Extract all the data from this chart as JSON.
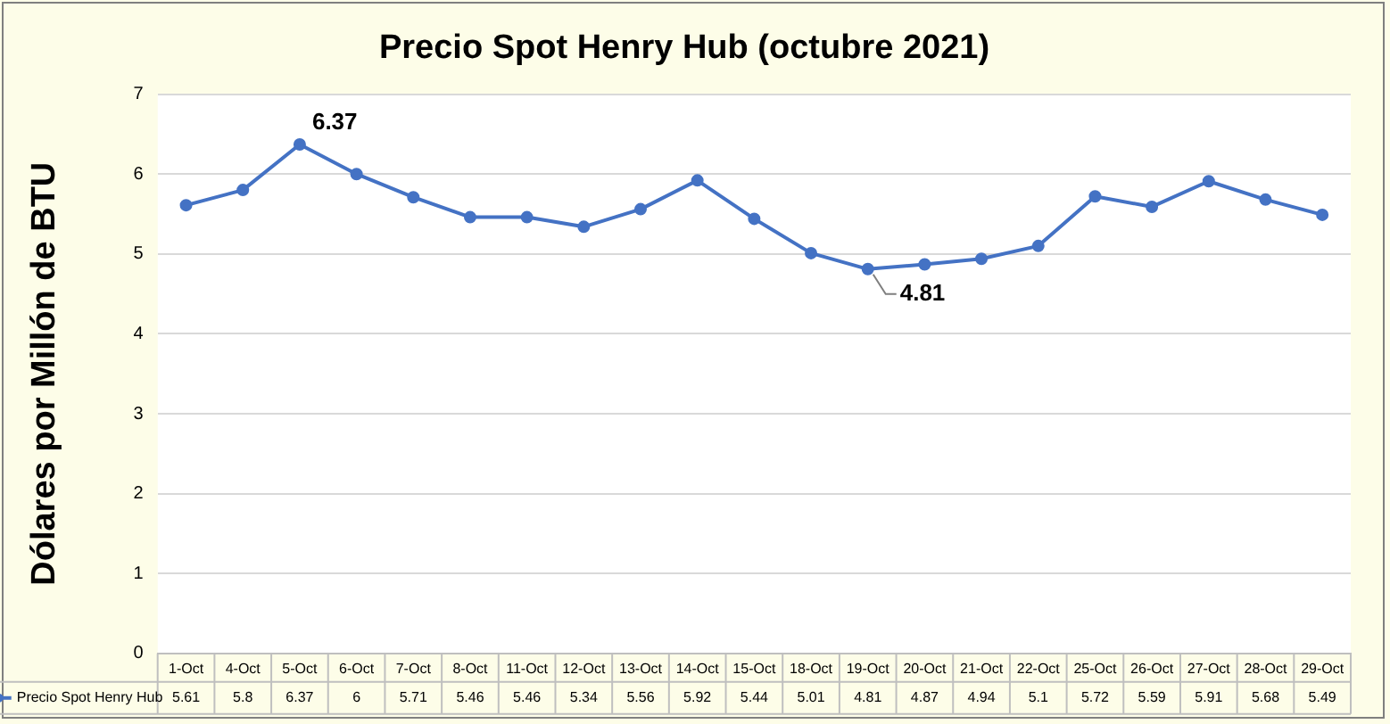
{
  "chart_data": {
    "type": "line",
    "title": "Precio Spot Henry Hub (octubre 2021)",
    "ylabel": "Dólares por Millón de BTU",
    "categories": [
      "1-Oct",
      "4-Oct",
      "5-Oct",
      "6-Oct",
      "7-Oct",
      "8-Oct",
      "11-Oct",
      "12-Oct",
      "13-Oct",
      "14-Oct",
      "15-Oct",
      "18-Oct",
      "19-Oct",
      "20-Oct",
      "21-Oct",
      "22-Oct",
      "25-Oct",
      "26-Oct",
      "27-Oct",
      "28-Oct",
      "29-Oct"
    ],
    "series": [
      {
        "name": "Precio Spot Henry Hub",
        "color": "#4472c4",
        "values": [
          5.61,
          5.8,
          6.37,
          6,
          5.71,
          5.46,
          5.46,
          5.34,
          5.56,
          5.92,
          5.44,
          5.01,
          4.81,
          4.87,
          4.94,
          5.1,
          5.72,
          5.59,
          5.91,
          5.68,
          5.49
        ]
      }
    ],
    "ylim": [
      0,
      7
    ],
    "yticks": [
      0,
      1,
      2,
      3,
      4,
      5,
      6,
      7
    ],
    "grid": "y",
    "marker": "circle",
    "line_style": "solid",
    "legend": "bottom",
    "data_labels": true,
    "annotations": [
      {
        "text": "6.37",
        "x": "5-Oct",
        "y": 6.37
      },
      {
        "text": "4.81",
        "x": "19-Oct",
        "y": 4.81
      }
    ]
  }
}
